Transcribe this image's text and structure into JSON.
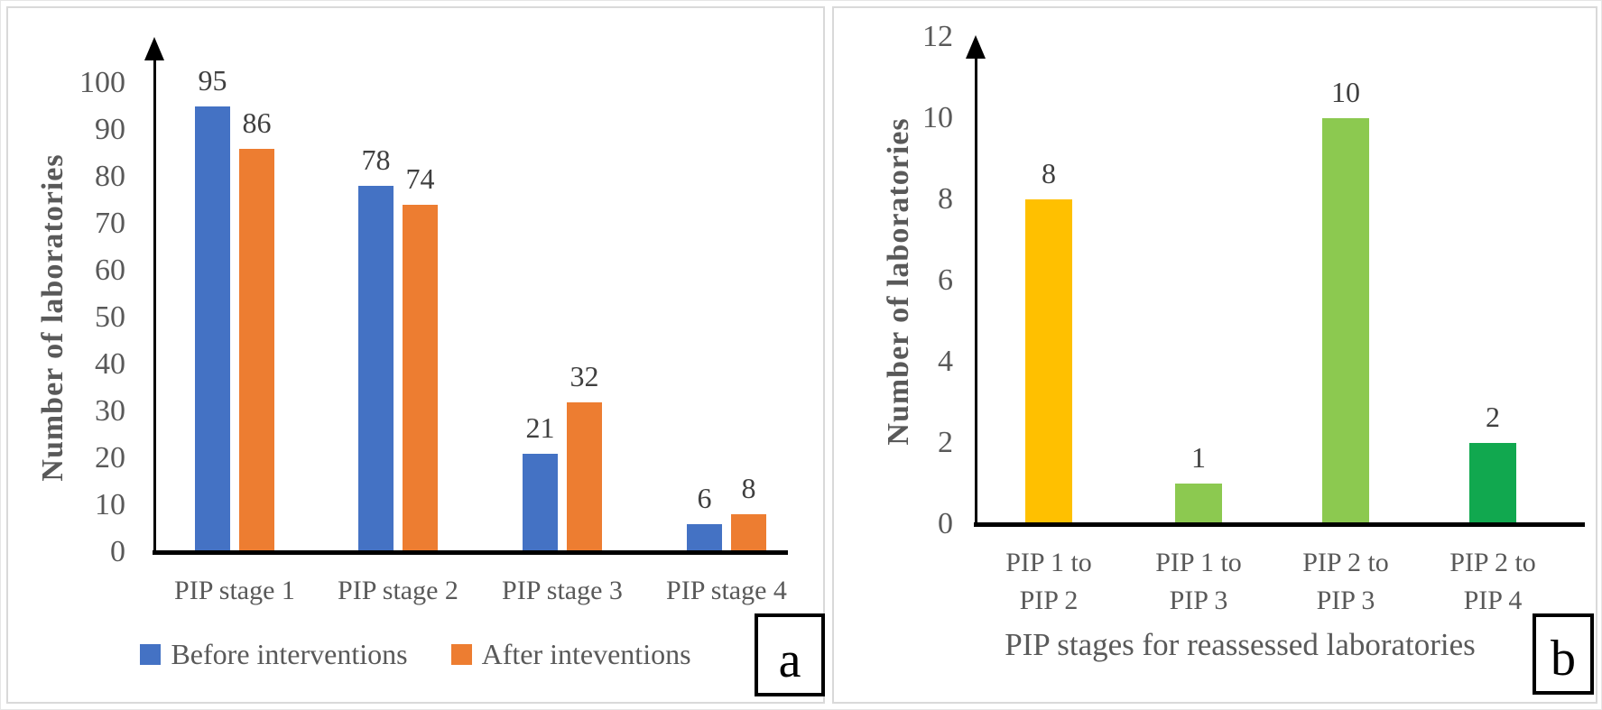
{
  "chart_data": [
    {
      "panel_label": "a",
      "type": "bar",
      "title": "",
      "xlabel": "",
      "ylabel": "Number of laboratories",
      "categories": [
        "PIP stage 1",
        "PIP stage 2",
        "PIP stage 3",
        "PIP stage 4"
      ],
      "series": [
        {
          "name": "Before interventions",
          "color": "#4472C4",
          "values": [
            95,
            78,
            21,
            6
          ]
        },
        {
          "name": "After inteventions",
          "color": "#ED7D31",
          "values": [
            86,
            74,
            32,
            8
          ]
        }
      ],
      "yticks": [
        0,
        10,
        20,
        30,
        40,
        50,
        60,
        70,
        80,
        90,
        100
      ],
      "ylim": [
        0,
        100
      ],
      "grid": false,
      "data_labels": true,
      "legend_position": "bottom",
      "axis_arrow": true
    },
    {
      "panel_label": "b",
      "type": "bar",
      "title": "",
      "xlabel": "PIP stages for reassessed laboratories",
      "ylabel": "Number of laboratories",
      "categories": [
        [
          "PIP 1 to",
          "PIP 2"
        ],
        [
          "PIP 1 to",
          "PIP 3"
        ],
        [
          "PIP 2 to",
          "PIP 3"
        ],
        [
          "PIP 2 to",
          "PIP 4"
        ]
      ],
      "values": [
        8,
        1,
        10,
        2
      ],
      "bar_colors": [
        "#FFC000",
        "#8CC950",
        "#8CC950",
        "#11A84F"
      ],
      "yticks": [
        0,
        2,
        4,
        6,
        8,
        10,
        12
      ],
      "ylim": [
        0,
        12
      ],
      "grid": false,
      "data_labels": true,
      "legend_position": "none",
      "axis_arrow": true
    }
  ]
}
